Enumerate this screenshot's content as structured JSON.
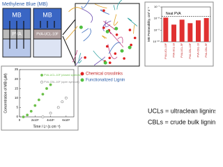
{
  "title": "Methylene Blue (MB)",
  "cells": [
    {
      "top": "MB",
      "membrane": "PVA"
    },
    {
      "top": "MB",
      "membrane": "PVA-UCL-10F"
    }
  ],
  "legend": {
    "crosslinks": "Chemical crosslinks",
    "lignin": "Functionalized Lignin"
  },
  "bar_chart": {
    "type": "bar",
    "y_label": "MB Permeability, cm² s⁻¹",
    "log_y": true,
    "reference_label": "Neat PVA",
    "reference_value": 1.5e-08,
    "categories": [
      "PVA-UCL-10F",
      "PVA-UCL-10",
      "PVA-UCL-5F",
      "PVA-CBL-10F",
      "PVA-CBL-10",
      "PVA-CBL-5F"
    ],
    "values": [
      1.2e-08,
      3e-09,
      8e-09,
      4e-09,
      7e-09,
      1.1e-08
    ],
    "color": "#e03030",
    "ylim": [
      1e-10,
      1e-07
    ],
    "yticks": [
      {
        "value": 1e-10,
        "label": "10⁻¹⁰"
      },
      {
        "value": 1e-09,
        "label": "10⁻⁹"
      },
      {
        "value": 1e-08,
        "label": "10⁻⁸"
      },
      {
        "value": 1e-07,
        "label": "10⁻⁷"
      }
    ]
  },
  "scatter_chart": {
    "type": "scatter",
    "x_label": "Time / L² (s cm⁻²)",
    "y_label": "Concentration of MB (µM)",
    "xlim": [
      0,
      700000000.0
    ],
    "ylim": [
      0,
      25
    ],
    "xticks": [
      0,
      {
        "value": 200000000.0,
        "label": "2x10⁸"
      },
      {
        "value": 400000000.0,
        "label": "4x10⁸"
      },
      {
        "value": 600000000.0,
        "label": "6x10⁸"
      }
    ],
    "yticks": [
      0,
      5,
      10,
      15,
      20,
      25
    ],
    "series": [
      {
        "name": "PVA-UCL-10F (closed symbols)",
        "color": "#6cc04a",
        "filled": true,
        "x": [
          50000000.0,
          100000000.0,
          150000000.0,
          200000000.0,
          250000000.0,
          300000000.0,
          350000000.0,
          400000000.0
        ],
        "values": [
          0,
          1,
          3,
          6,
          9,
          12,
          15,
          17
        ]
      },
      {
        "name": "PVA-CBL-10F (open symbols)",
        "color": "#888888",
        "filled": false,
        "x": [
          300000000.0,
          400000000.0,
          500000000.0,
          550000000.0,
          600000000.0
        ],
        "values": [
          0,
          2,
          5,
          8,
          10
        ]
      }
    ]
  },
  "notes": [
    "UCLs = ultraclean lignins",
    "CBLs = crude bulk lignins"
  ]
}
